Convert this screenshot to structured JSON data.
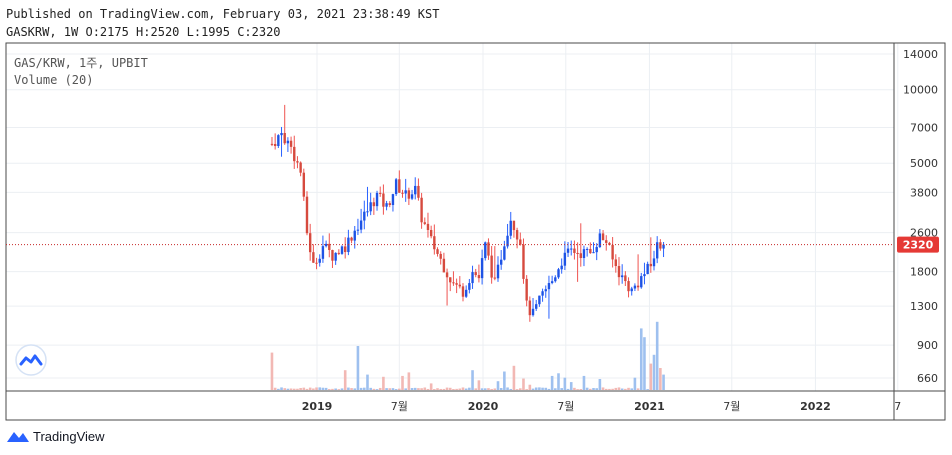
{
  "header": {
    "published": "Published on TradingView.com, February 03, 2021 23:38:49 KST",
    "ohlc": "GASKRW, 1W O:2175 H:2520 L:1995 C:2320"
  },
  "legend": {
    "symbol": "GAS/KRW, 1주, UPBIT",
    "volume": "Volume (20)"
  },
  "footer": {
    "brand": "TradingView"
  },
  "colors": {
    "up": "#2962ff",
    "down": "#ef5350",
    "up_fill": "#1e53e5",
    "down_fill": "#d64a3e",
    "vol_up": "#9ec0ef",
    "vol_down": "#f2b8b4"
  },
  "chart_data": {
    "type": "candlestick",
    "scale": "log",
    "last_price": 2320,
    "price_label": "2320",
    "y_ticks": [
      14000,
      10000,
      7000,
      5000,
      3800,
      2600,
      1800,
      1300,
      900,
      660
    ],
    "y_tick_labels": [
      "14000",
      "10000",
      "7000",
      "5000",
      "3800",
      "2600",
      "1800",
      "1300",
      "900",
      "660"
    ],
    "x_ticks": [
      {
        "date": "2019-01",
        "label": "2019",
        "bold": true
      },
      {
        "date": "2019-07",
        "label": "7월",
        "bold": false
      },
      {
        "date": "2020-01",
        "label": "2020",
        "bold": true
      },
      {
        "date": "2020-07",
        "label": "7월",
        "bold": false
      },
      {
        "date": "2021-01",
        "label": "2021",
        "bold": true
      },
      {
        "date": "2021-07",
        "label": "7월",
        "bold": false
      },
      {
        "date": "2022-01",
        "label": "2022",
        "bold": true
      },
      {
        "date": "2022-07",
        "label": "7",
        "bold": false
      }
    ],
    "price_anchors": [
      [
        "2018-09-24",
        6000
      ],
      [
        "2018-10-15",
        6600
      ],
      [
        "2018-11-05",
        5800
      ],
      [
        "2018-11-26",
        4600
      ],
      [
        "2018-12-10",
        2600
      ],
      [
        "2018-12-24",
        1900
      ],
      [
        "2019-01-14",
        2300
      ],
      [
        "2019-02-04",
        2100
      ],
      [
        "2019-03-04",
        2300
      ],
      [
        "2019-04-01",
        2800
      ],
      [
        "2019-04-22",
        3200
      ],
      [
        "2019-05-13",
        3700
      ],
      [
        "2019-06-03",
        3300
      ],
      [
        "2019-06-24",
        4100
      ],
      [
        "2019-07-15",
        3700
      ],
      [
        "2019-08-05",
        3900
      ],
      [
        "2019-08-19",
        3000
      ],
      [
        "2019-09-09",
        2400
      ],
      [
        "2019-10-07",
        1900
      ],
      [
        "2019-10-28",
        1600
      ],
      [
        "2019-11-18",
        1500
      ],
      [
        "2019-12-09",
        1800
      ],
      [
        "2019-12-23",
        1700
      ],
      [
        "2020-01-06",
        2300
      ],
      [
        "2020-01-27",
        1600
      ],
      [
        "2020-02-17",
        2400
      ],
      [
        "2020-03-02",
        3000
      ],
      [
        "2020-03-23",
        2400
      ],
      [
        "2020-04-06",
        1300
      ],
      [
        "2020-04-20",
        1200
      ],
      [
        "2020-05-11",
        1450
      ],
      [
        "2020-06-01",
        1650
      ],
      [
        "2020-06-22",
        2000
      ],
      [
        "2020-07-13",
        2200
      ],
      [
        "2020-08-03",
        2150
      ],
      [
        "2020-08-24",
        2150
      ],
      [
        "2020-09-14",
        2500
      ],
      [
        "2020-09-28",
        2400
      ],
      [
        "2020-10-12",
        2000
      ],
      [
        "2020-11-02",
        1700
      ],
      [
        "2020-11-23",
        1500
      ],
      [
        "2020-12-14",
        1700
      ],
      [
        "2021-01-04",
        1900
      ],
      [
        "2021-01-18",
        2300
      ],
      [
        "2021-02-01",
        2320
      ]
    ],
    "volume_spikes": [
      [
        "2018-09-24",
        0.85
      ],
      [
        "2019-03-04",
        0.45
      ],
      [
        "2019-04-01",
        1.0
      ],
      [
        "2019-04-22",
        0.35
      ],
      [
        "2019-05-27",
        0.3
      ],
      [
        "2019-07-08",
        0.32
      ],
      [
        "2019-07-22",
        0.4
      ],
      [
        "2019-09-09",
        0.15
      ],
      [
        "2019-12-09",
        0.45
      ],
      [
        "2019-12-23",
        0.22
      ],
      [
        "2020-02-03",
        0.2
      ],
      [
        "2020-02-17",
        0.42
      ],
      [
        "2020-03-09",
        0.55
      ],
      [
        "2020-03-30",
        0.26
      ],
      [
        "2020-04-13",
        0.12
      ],
      [
        "2020-06-01",
        0.32
      ],
      [
        "2020-06-15",
        0.38
      ],
      [
        "2020-06-29",
        0.28
      ],
      [
        "2020-07-13",
        0.18
      ],
      [
        "2020-08-10",
        0.32
      ],
      [
        "2020-09-14",
        0.25
      ],
      [
        "2020-11-30",
        0.28
      ],
      [
        "2020-12-14",
        1.4
      ],
      [
        "2020-12-21",
        1.2
      ],
      [
        "2021-01-04",
        0.6
      ],
      [
        "2021-01-11",
        0.8
      ],
      [
        "2021-01-18",
        1.55
      ],
      [
        "2021-01-25",
        0.5
      ],
      [
        "2021-02-01",
        0.35
      ]
    ]
  }
}
